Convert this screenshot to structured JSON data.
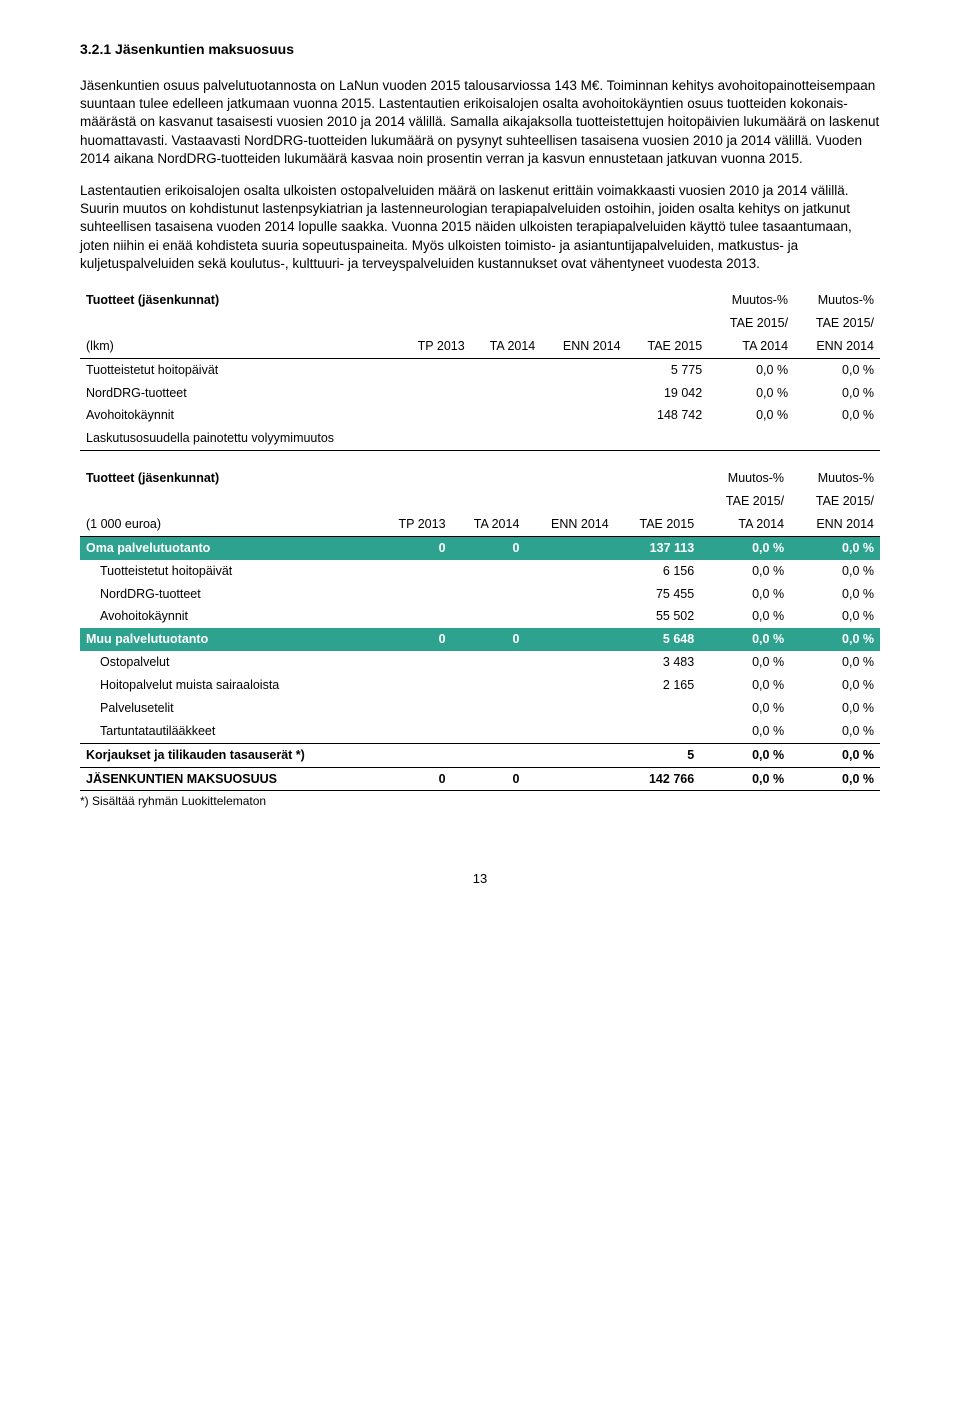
{
  "heading": "3.2.1   Jäsenkuntien maksuosuus",
  "para1": "Jäsenkuntien osuus palvelutuotannosta on LaNun vuoden 2015 talousarviossa 143 M€. Toiminnan kehitys avohoitopainotteisempaan suuntaan tulee edelleen jatkumaan vuonna 2015. Lastentautien erikoisalojen osalta avohoitokäyntien osuus tuotteiden kokonais-määrästä on kasvanut tasaisesti vuosien 2010 ja 2014 välillä. Samalla aikajaksolla tuotteistettujen hoitopäivien lukumäärä on laskenut huomattavasti. Vastaavasti NordDRG-tuotteiden lukumäärä on pysynyt suhteellisen tasaisena vuosien 2010 ja 2014 välillä. Vuoden 2014 aikana NordDRG-tuotteiden lukumäärä kasvaa noin prosentin verran ja kasvun ennustetaan jatkuvan vuonna 2015.",
  "para2": "Lastentautien erikoisalojen osalta ulkoisten ostopalveluiden määrä on laskenut erittäin voimakkaasti vuosien 2010 ja 2014 välillä. Suurin muutos on kohdistunut lastenpsykiatrian ja lastenneurologian terapiapalveluiden ostoihin, joiden osalta kehitys on jatkunut suhteellisen tasaisena vuoden 2014 lopulle saakka. Vuonna 2015 näiden ulkoisten terapiapalveluiden käyttö tulee tasaantumaan, joten niihin ei enää kohdisteta suuria sopeutuspaineita. Myös ulkoisten toimisto- ja asiantuntijapalveluiden, matkustus- ja kuljetuspalveluiden sekä koulutus-, kulttuuri- ja terveyspalveluiden kustannukset ovat vähentyneet vuodesta 2013.",
  "t1": {
    "h1": "Tuotteet (jäsenkunnat)",
    "h1b": "(lkm)",
    "cols": [
      "TP 2013",
      "TA 2014",
      "ENN 2014",
      "TAE 2015",
      "Muutos-%\nTAE 2015/\nTA 2014",
      "Muutos-%\nTAE 2015/\nENN 2014"
    ],
    "rows": [
      [
        "Tuotteistetut hoitopäivät",
        "",
        "",
        "",
        "5 775",
        "0,0 %",
        "0,0 %"
      ],
      [
        "NordDRG-tuotteet",
        "",
        "",
        "",
        "19 042",
        "0,0 %",
        "0,0 %"
      ],
      [
        "Avohoitokäynnit",
        "",
        "",
        "",
        "148 742",
        "0,0 %",
        "0,0 %"
      ],
      [
        "Laskutusosuudella painotettu volyymimuutos",
        "",
        "",
        "",
        "",
        "",
        ""
      ]
    ]
  },
  "t2": {
    "h1": "Tuotteet (jäsenkunnat)",
    "h1b": "(1 000 euroa)",
    "cols": [
      "TP 2013",
      "TA 2014",
      "ENN 2014",
      "TAE 2015",
      "Muutos-%\nTAE 2015/\nTA 2014",
      "Muutos-%\nTAE 2015/\nENN 2014"
    ],
    "teal1": [
      "Oma palvelutuotanto",
      "0",
      "0",
      "",
      "137 113",
      "0,0 %",
      "0,0 %"
    ],
    "rows1": [
      [
        "Tuotteistetut hoitopäivät",
        "",
        "",
        "",
        "6 156",
        "0,0 %",
        "0,0 %"
      ],
      [
        "NordDRG-tuotteet",
        "",
        "",
        "",
        "75 455",
        "0,0 %",
        "0,0 %"
      ],
      [
        "Avohoitokäynnit",
        "",
        "",
        "",
        "55 502",
        "0,0 %",
        "0,0 %"
      ]
    ],
    "teal2": [
      "Muu palvelutuotanto",
      "0",
      "0",
      "",
      "5 648",
      "0,0 %",
      "0,0 %"
    ],
    "rows2": [
      [
        "Ostopalvelut",
        "",
        "",
        "",
        "3 483",
        "0,0 %",
        "0,0 %"
      ],
      [
        "Hoitopalvelut muista sairaaloista",
        "",
        "",
        "",
        "2 165",
        "0,0 %",
        "0,0 %"
      ],
      [
        "Palvelusetelit",
        "",
        "",
        "",
        "",
        "0,0 %",
        "0,0 %"
      ],
      [
        "Tartuntatautilääkkeet",
        "",
        "",
        "",
        "",
        "0,0 %",
        "0,0 %"
      ]
    ],
    "korj": [
      "Korjaukset ja tilikauden tasauserät *)",
      "",
      "",
      "",
      "5",
      "0,0 %",
      "0,0 %"
    ],
    "total": [
      "JÄSENKUNTIEN MAKSUOSUUS",
      "0",
      "0",
      "",
      "142 766",
      "0,0 %",
      "0,0 %"
    ],
    "foot": "*) Sisältää ryhmän Luokittelematon"
  },
  "pagenum": "13"
}
